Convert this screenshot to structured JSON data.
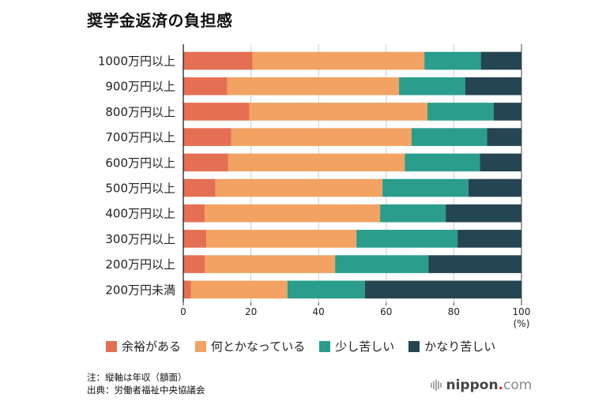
{
  "chart_data": {
    "type": "bar",
    "orientation": "horizontal",
    "stacked": true,
    "title": "奨学金返済の負担感",
    "xlabel": "",
    "xunit": "(%)",
    "ylabel": "",
    "xlim": [
      0,
      100
    ],
    "xticks": [
      0,
      20,
      40,
      60,
      80,
      100
    ],
    "grid": true,
    "legend_position": "bottom",
    "categories": [
      "1000万円以上",
      "900万円以上",
      "800万円以上",
      "700万円以上",
      "600万円以上",
      "500万円以上",
      "400万円以上",
      "300万円以上",
      "200万円以上",
      "200万円未満"
    ],
    "series": [
      {
        "name": "余裕がある",
        "color": "#E56F52",
        "values": [
          20.5,
          13.0,
          19.5,
          14.2,
          13.2,
          9.5,
          6.3,
          6.8,
          6.4,
          2.3
        ]
      },
      {
        "name": "何とかなっている",
        "color": "#F2A262",
        "values": [
          50.8,
          50.8,
          52.7,
          53.3,
          52.3,
          49.4,
          51.9,
          44.4,
          38.5,
          28.5
        ]
      },
      {
        "name": "少し苦しい",
        "color": "#2A9D8C",
        "values": [
          16.7,
          19.6,
          19.6,
          22.3,
          22.2,
          25.4,
          19.4,
          29.9,
          27.6,
          22.9
        ]
      },
      {
        "name": "かなり苦しい",
        "color": "#264553",
        "values": [
          12.0,
          16.6,
          8.2,
          10.2,
          12.3,
          15.7,
          22.4,
          18.9,
          27.5,
          46.3
        ]
      }
    ]
  },
  "notes": {
    "note": "注：縦軸は年収（額面）",
    "source": "出典：労働者福祉中央協議会"
  },
  "brand": {
    "name": "nippon",
    "dot": ".",
    "suffix": "com"
  }
}
